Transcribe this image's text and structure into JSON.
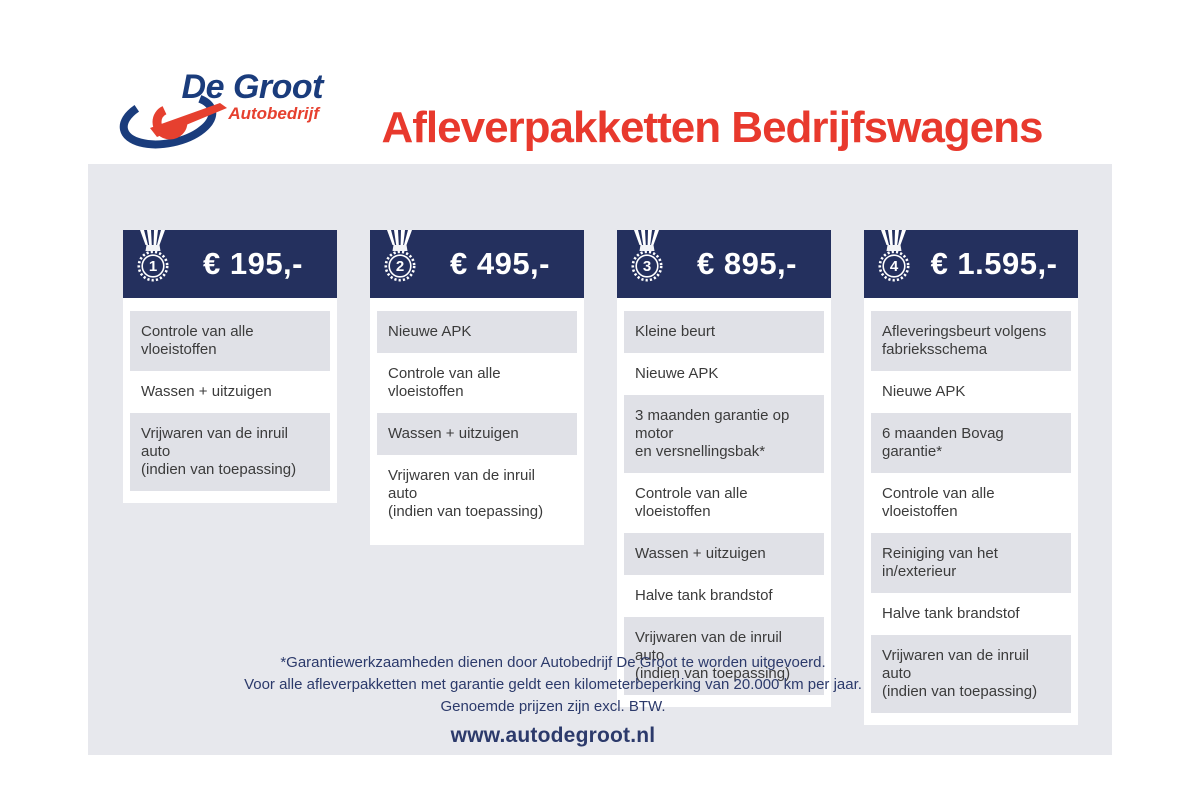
{
  "brand": {
    "name": "De Groot",
    "subtitle": "Autobedrijf"
  },
  "title": "Afleverpakketten Bedrijfswagens",
  "packages": [
    {
      "number": "1",
      "price": "€ 195,-",
      "items": [
        "Controle van alle vloeistoffen",
        "Wassen + uitzuigen",
        "Vrijwaren van de inruil auto\n(indien van toepassing)"
      ]
    },
    {
      "number": "2",
      "price": "€ 495,-",
      "items": [
        "Nieuwe APK",
        "Controle van alle vloeistoffen",
        "Wassen + uitzuigen",
        "Vrijwaren van de inruil auto\n(indien van toepassing)"
      ]
    },
    {
      "number": "3",
      "price": "€ 895,-",
      "items": [
        "Kleine beurt",
        "Nieuwe APK",
        "3 maanden garantie op motor\nen versnellingsbak*",
        "Controle van alle vloeistoffen",
        "Wassen + uitzuigen",
        "Halve tank brandstof",
        "Vrijwaren van de inruil auto\n(indien van toepassing)"
      ]
    },
    {
      "number": "4",
      "price": "€ 1.595,-",
      "items": [
        "Afleveringsbeurt volgens\nfabrieksschema",
        "Nieuwe APK",
        "6 maanden Bovag garantie*",
        "Controle van alle vloeistoffen",
        "Reiniging van het in/exterieur",
        "Halve tank brandstof",
        "Vrijwaren van de inruil auto\n(indien van toepassing)"
      ]
    }
  ],
  "footer": {
    "notes": [
      "*Garantiewerkzaamheden dienen door Autobedrijf De Groot te worden uitgevoerd.",
      "Voor alle afleverpakketten met garantie geldt een kilometerbeperking van 20.000 km per jaar.",
      "Genoemde prijzen zijn excl. BTW."
    ],
    "website": "www.autodegroot.nl"
  },
  "colors": {
    "header_navy": "#24305e",
    "logo_navy": "#1a3c7c",
    "accent_red": "#e8392d",
    "panel_gray": "#e7e8ed",
    "row_gray": "#e0e1e7",
    "footer_navy": "#2c3a6b"
  }
}
